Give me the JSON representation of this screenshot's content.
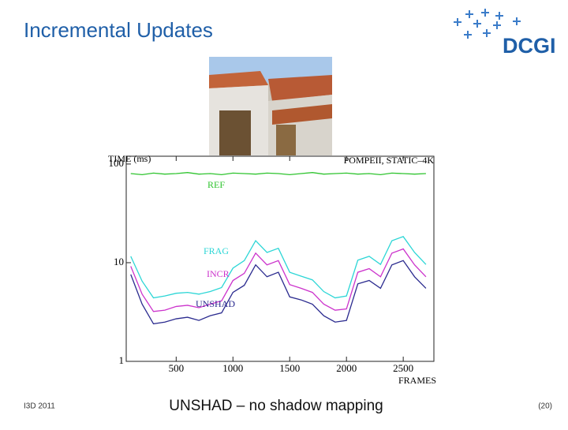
{
  "slide": {
    "title": "Incremental Updates",
    "logo": "DCGI",
    "footer_left": "I3D 2011",
    "footer_center": "UNSHAD – no shadow mapping",
    "footer_right": "(20)"
  },
  "chart_data": {
    "type": "line",
    "title": "POMPEII, STATIC–4K",
    "y_label": "TIME (ms)",
    "x_label": "FRAMES",
    "log_y": true,
    "xlim": [
      60,
      2770
    ],
    "ylim": [
      1,
      120
    ],
    "xticks": [
      500,
      1000,
      1500,
      2000,
      2500
    ],
    "yticks": [
      1,
      10,
      100
    ],
    "x": [
      100,
      200,
      300,
      400,
      500,
      600,
      700,
      800,
      900,
      1000,
      1100,
      1200,
      1300,
      1400,
      1500,
      1600,
      1700,
      1800,
      1900,
      2000,
      2100,
      2200,
      2300,
      2400,
      2500,
      2600,
      2700
    ],
    "series": [
      {
        "name": "REF",
        "color": "#2fc42f",
        "values": [
          80,
          78,
          81,
          79,
          80,
          82,
          79,
          80,
          78,
          81,
          80,
          79,
          81,
          80,
          78,
          80,
          82,
          79,
          80,
          81,
          79,
          80,
          78,
          81,
          80,
          79,
          80
        ]
      },
      {
        "name": "FRAG",
        "color": "#2cd6d6",
        "values": [
          11.6,
          6.5,
          4.4,
          4.6,
          4.9,
          5.0,
          4.8,
          5.1,
          5.6,
          8.8,
          10.5,
          16.7,
          12.7,
          14,
          8,
          7.3,
          6.7,
          5.1,
          4.4,
          4.6,
          10.6,
          11.6,
          9.6,
          16.7,
          18.4,
          12.7,
          9.6
        ]
      },
      {
        "name": "INCR",
        "color": "#cc33cc",
        "values": [
          9.2,
          4.8,
          3.2,
          3.3,
          3.6,
          3.7,
          3.5,
          3.8,
          4.1,
          6.6,
          7.8,
          12.5,
          9.5,
          10.5,
          6.0,
          5.5,
          5.0,
          3.8,
          3.3,
          3.4,
          8.0,
          8.7,
          7.2,
          12.5,
          13.8,
          9.5,
          7.2
        ]
      },
      {
        "name": "UNSHAD",
        "color": "#2b2b8f",
        "values": [
          7.6,
          3.8,
          2.4,
          2.5,
          2.7,
          2.8,
          2.6,
          2.9,
          3.1,
          5.0,
          5.9,
          9.5,
          7.2,
          8.0,
          4.5,
          4.2,
          3.8,
          2.9,
          2.5,
          2.6,
          6.1,
          6.6,
          5.5,
          9.5,
          10.5,
          7.2,
          5.5
        ]
      }
    ]
  }
}
